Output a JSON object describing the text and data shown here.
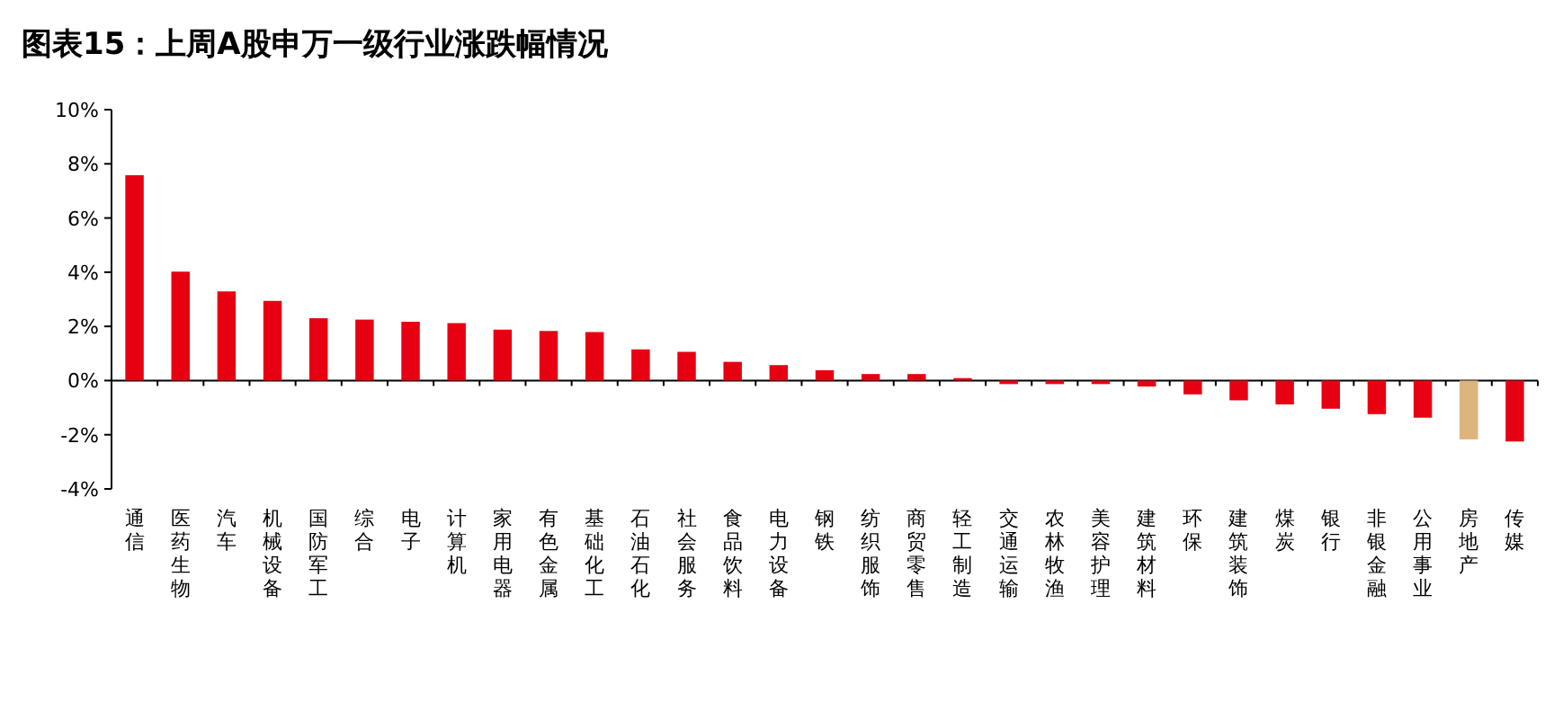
{
  "chart_data": {
    "type": "bar",
    "title": "图表15：上周A股申万一级行业涨跌幅情况",
    "categories": [
      "通信",
      "医药生物",
      "汽车",
      "机械设备",
      "国防军工",
      "综合",
      "电子",
      "计算机",
      "家用电器",
      "有色金属",
      "基础化工",
      "石油石化",
      "社会服务",
      "食品饮料",
      "电力设备",
      "钢铁",
      "纺织服饰",
      "商贸零售",
      "轻工制造",
      "交通运输",
      "农林牧渔",
      "美容护理",
      "建筑材料",
      "环保",
      "建筑装饰",
      "煤炭",
      "银行",
      "非银金融",
      "公用事业",
      "房地产",
      "传媒"
    ],
    "values": [
      7.58,
      4.02,
      3.29,
      2.94,
      2.3,
      2.25,
      2.17,
      2.12,
      1.88,
      1.83,
      1.79,
      1.15,
      1.06,
      0.69,
      0.57,
      0.38,
      0.24,
      0.24,
      0.09,
      -0.13,
      -0.13,
      -0.13,
      -0.22,
      -0.51,
      -0.73,
      -0.88,
      -1.04,
      -1.24,
      -1.37,
      -2.17,
      -2.25
    ],
    "colors": [
      "#e60012",
      "#e60012",
      "#e60012",
      "#e60012",
      "#e60012",
      "#e60012",
      "#e60012",
      "#e60012",
      "#e60012",
      "#e60012",
      "#e60012",
      "#e60012",
      "#e60012",
      "#e60012",
      "#e60012",
      "#e60012",
      "#e60012",
      "#e60012",
      "#e60012",
      "#e60012",
      "#e60012",
      "#e60012",
      "#e60012",
      "#e60012",
      "#e60012",
      "#e60012",
      "#e60012",
      "#e60012",
      "#e60012",
      "#dcb47e",
      "#e60012"
    ],
    "ylim": [
      -4,
      10
    ],
    "yticks": [
      {
        "value": -4,
        "label": "-4%"
      },
      {
        "value": -2,
        "label": "-2%"
      },
      {
        "value": 0,
        "label": "0%"
      },
      {
        "value": 2,
        "label": "2%"
      },
      {
        "value": 4,
        "label": "4%"
      },
      {
        "value": 6,
        "label": "6%"
      },
      {
        "value": 8,
        "label": "8%"
      },
      {
        "value": 10,
        "label": "10%"
      }
    ]
  }
}
